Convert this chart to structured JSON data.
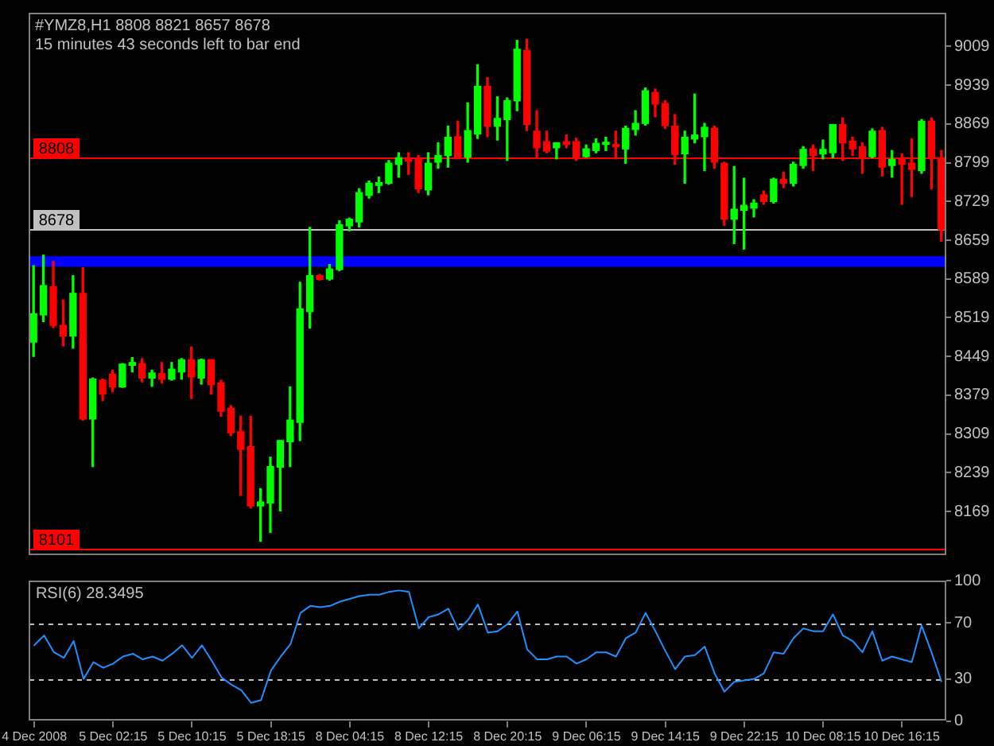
{
  "chart_data": [
    {
      "type": "candlestick",
      "title": "#YMZ8,H1 8808 8821 8657 8678",
      "subtitle": "15 minutes 43 seconds left to bar end",
      "categories": [
        null,
        null,
        null,
        null,
        null,
        null,
        null,
        null,
        null,
        null,
        null,
        null,
        null,
        null,
        null,
        null,
        null,
        null,
        null,
        null,
        null,
        null,
        null,
        null,
        null,
        null,
        null,
        null,
        null,
        null,
        null,
        null,
        null,
        null,
        null,
        null,
        null,
        null,
        null,
        null,
        null,
        null,
        null,
        null,
        null,
        null,
        null,
        null,
        null,
        null,
        null,
        null,
        null,
        null,
        null,
        null,
        null,
        null,
        null,
        null,
        null,
        null,
        null,
        null,
        null,
        null,
        null,
        null,
        null,
        null,
        null,
        null,
        null,
        null,
        null,
        null,
        null,
        null,
        null,
        null,
        null,
        null,
        null,
        null,
        null,
        null,
        null,
        null,
        null,
        null,
        null,
        null,
        null
      ],
      "ohlc": [
        [
          8475,
          8613,
          8449,
          8526
        ],
        [
          8524,
          8632,
          8512,
          8577
        ],
        [
          8575,
          8621,
          8501,
          8505
        ],
        [
          8505,
          8551,
          8468,
          8486
        ],
        [
          8486,
          8595,
          8464,
          8563
        ],
        [
          8563,
          8609,
          8334,
          8336
        ],
        [
          8336,
          8410,
          8250,
          8408
        ],
        [
          8406,
          8408,
          8369,
          8381
        ],
        [
          8417,
          8424,
          8385,
          8394
        ],
        [
          8394,
          8436,
          8393,
          8435
        ],
        [
          8433,
          8447,
          8421,
          8438
        ],
        [
          8436,
          8445,
          8403,
          8410
        ],
        [
          8410,
          8424,
          8395,
          8419
        ],
        [
          8418,
          8438,
          8401,
          8408
        ],
        [
          8408,
          8438,
          8406,
          8426
        ],
        [
          8421,
          8445,
          8408,
          8443
        ],
        [
          8443,
          8466,
          8373,
          8412
        ],
        [
          8410,
          8444,
          8399,
          8443
        ],
        [
          8443,
          8443,
          8381,
          8398
        ],
        [
          8401,
          8406,
          8341,
          8350
        ],
        [
          8355,
          8360,
          8306,
          8311
        ],
        [
          8313,
          8341,
          8198,
          8281
        ],
        [
          8286,
          8341,
          8175,
          8179
        ],
        [
          8179,
          8210,
          8115,
          8186
        ],
        [
          8184,
          8267,
          8131,
          8250
        ],
        [
          8249,
          8297,
          8170,
          8297
        ],
        [
          8295,
          8394,
          8250,
          8334
        ],
        [
          8330,
          8583,
          8297,
          8535
        ],
        [
          8530,
          8682,
          8500,
          8595
        ],
        [
          8595,
          8597,
          8587,
          8588
        ],
        [
          8589,
          8615,
          8587,
          8607
        ],
        [
          8606,
          8694,
          8604,
          8687
        ],
        [
          8685,
          8699,
          8676,
          8697
        ],
        [
          8692,
          8752,
          8683,
          8745
        ],
        [
          8740,
          8766,
          8735,
          8762
        ],
        [
          8758,
          8773,
          8745,
          8763
        ],
        [
          8762,
          8803,
          8760,
          8798
        ],
        [
          8796,
          8817,
          8773,
          8808
        ],
        [
          8805,
          8817,
          8778,
          8802
        ],
        [
          8805,
          8812,
          8745,
          8752
        ],
        [
          8750,
          8817,
          8741,
          8798
        ],
        [
          8800,
          8835,
          8789,
          8812
        ],
        [
          8812,
          8865,
          8791,
          8845
        ],
        [
          8846,
          8874,
          8806,
          8809
        ],
        [
          8809,
          8907,
          8800,
          8857
        ],
        [
          8851,
          8976,
          8843,
          8937
        ],
        [
          8937,
          8953,
          8846,
          8865
        ],
        [
          8865,
          8918,
          8840,
          8879
        ],
        [
          8877,
          8916,
          8803,
          8911
        ],
        [
          8911,
          9020,
          8893,
          9004
        ],
        [
          9002,
          9022,
          8857,
          8868
        ],
        [
          8856,
          8893,
          8809,
          8826
        ],
        [
          8837,
          8856,
          8817,
          8820
        ],
        [
          8826,
          8835,
          8806,
          8835
        ],
        [
          8837,
          8849,
          8826,
          8832
        ],
        [
          8837,
          8843,
          8803,
          8808
        ],
        [
          8810,
          8831,
          8809,
          8824
        ],
        [
          8821,
          8842,
          8817,
          8834
        ],
        [
          8832,
          8845,
          8821,
          8836
        ],
        [
          8832,
          8856,
          8806,
          8828
        ],
        [
          8824,
          8865,
          8798,
          8861
        ],
        [
          8859,
          8893,
          8849,
          8870
        ],
        [
          8870,
          8934,
          8867,
          8929
        ],
        [
          8926,
          8932,
          8882,
          8905
        ],
        [
          8906,
          8911,
          8861,
          8866
        ],
        [
          8865,
          8886,
          8796,
          8814
        ],
        [
          8815,
          8856,
          8762,
          8845
        ],
        [
          8842,
          8923,
          8835,
          8849
        ],
        [
          8846,
          8870,
          8785,
          8863
        ],
        [
          8861,
          8865,
          8789,
          8800
        ],
        [
          8798,
          8800,
          8686,
          8697
        ],
        [
          8697,
          8792,
          8653,
          8715
        ],
        [
          8713,
          8771,
          8643,
          8722
        ],
        [
          8717,
          8732,
          8701,
          8726
        ],
        [
          8741,
          8748,
          8724,
          8729
        ],
        [
          8729,
          8771,
          8726,
          8769
        ],
        [
          8769,
          8782,
          8754,
          8762
        ],
        [
          8762,
          8800,
          8757,
          8796
        ],
        [
          8794,
          8828,
          8789,
          8823
        ],
        [
          8824,
          8831,
          8785,
          8812
        ],
        [
          8815,
          8840,
          8806,
          8823
        ],
        [
          8817,
          8868,
          8808,
          8868
        ],
        [
          8868,
          8880,
          8803,
          8835
        ],
        [
          8838,
          8845,
          8812,
          8824
        ],
        [
          8828,
          8835,
          8780,
          8808
        ],
        [
          8810,
          8860,
          8808,
          8856
        ],
        [
          8857,
          8863,
          8775,
          8791
        ],
        [
          8794,
          8821,
          8773,
          8805
        ],
        [
          8805,
          8815,
          8724,
          8796
        ],
        [
          8798,
          8842,
          8738,
          8787
        ],
        [
          8785,
          8877,
          8780,
          8874
        ],
        [
          8874,
          8880,
          8752,
          8808
        ],
        [
          8808,
          8821,
          8657,
          8678
        ]
      ],
      "colors": [
        "#00ff00",
        "#00ff00",
        "#ff0000",
        "#ff0000",
        "#00ff00",
        "#ff0000",
        "#00ff00",
        "#ff0000",
        "#ff0000",
        "#00ff00",
        "#00ff00",
        "#ff0000",
        "#00ff00",
        "#ff0000",
        "#00ff00",
        "#00ff00",
        "#ff0000",
        "#00ff00",
        "#ff0000",
        "#ff0000",
        "#ff0000",
        "#ff0000",
        "#ff0000",
        "#00ff00",
        "#00ff00",
        "#00ff00",
        "#00ff00",
        "#00ff00",
        "#00ff00",
        "#ff0000",
        "#00ff00",
        "#00ff00",
        "#00ff00",
        "#00ff00",
        "#00ff00",
        "#00ff00",
        "#00ff00",
        "#00ff00",
        "#ff0000",
        "#ff0000",
        "#00ff00",
        "#00ff00",
        "#00ff00",
        "#ff0000",
        "#00ff00",
        "#00ff00",
        "#ff0000",
        "#00ff00",
        "#00ff00",
        "#00ff00",
        "#ff0000",
        "#ff0000",
        "#ff0000",
        "#00ff00",
        "#ff0000",
        "#ff0000",
        "#00ff00",
        "#00ff00",
        "#00ff00",
        "#ff0000",
        "#00ff00",
        "#00ff00",
        "#00ff00",
        "#ff0000",
        "#ff0000",
        "#ff0000",
        "#00ff00",
        "#00ff00",
        "#00ff00",
        "#ff0000",
        "#ff0000",
        "#00ff00",
        "#00ff00",
        "#00ff00",
        "#ff0000",
        "#00ff00",
        "#ff0000",
        "#00ff00",
        "#00ff00",
        "#ff0000",
        "#00ff00",
        "#00ff00",
        "#ff0000",
        "#ff0000",
        "#ff0000",
        "#00ff00",
        "#ff0000",
        "#00ff00",
        "#ff0000",
        "#ff0000",
        "#00ff00",
        "#ff0000",
        "#ff0000"
      ],
      "ylim": [
        8090,
        9070
      ],
      "yticks": [
        9009,
        8939,
        8869,
        8799,
        8729,
        8659,
        8589,
        8519,
        8449,
        8379,
        8309,
        8239,
        8169
      ],
      "tick_labels": "y",
      "ref_lines": [
        {
          "axis": "y",
          "value": 8808,
          "label": "8808",
          "color": "#ff0000"
        },
        {
          "axis": "y",
          "value": 8678,
          "label": "8678",
          "color": "#c0c0c0"
        },
        {
          "axis": "y",
          "value": 8101,
          "label": "8101",
          "color": "#ff0000"
        }
      ],
      "bands": [
        {
          "axis": "y",
          "from": 8611,
          "to": 8630,
          "color": "#0000ff"
        }
      ]
    },
    {
      "type": "line",
      "title": "RSI(6) 28.3495",
      "categories": [
        "4 Dec 2008",
        null,
        null,
        null,
        null,
        null,
        null,
        null,
        "5 Dec 02:15",
        null,
        null,
        null,
        null,
        null,
        null,
        null,
        "5 Dec 10:15",
        null,
        null,
        null,
        null,
        null,
        null,
        null,
        "5 Dec 18:15",
        null,
        null,
        null,
        null,
        null,
        null,
        null,
        "8 Dec 04:15",
        null,
        null,
        null,
        null,
        null,
        null,
        null,
        "8 Dec 12:15",
        null,
        null,
        null,
        null,
        null,
        null,
        null,
        "8 Dec 20:15",
        null,
        null,
        null,
        null,
        null,
        null,
        null,
        "9 Dec 06:15",
        null,
        null,
        null,
        null,
        null,
        null,
        null,
        "9 Dec 14:15",
        null,
        null,
        null,
        null,
        null,
        null,
        null,
        "9 Dec 22:15",
        null,
        null,
        null,
        null,
        null,
        null,
        null,
        "10 Dec 08:15",
        null,
        null,
        null,
        null,
        null,
        null,
        null,
        "10 Dec 16:15",
        null,
        null,
        null,
        null
      ],
      "series": [
        {
          "color": "#1e90ff",
          "values": [
            54,
            61,
            49,
            45,
            57,
            30,
            42,
            38,
            41,
            46,
            48,
            44,
            46,
            43,
            48,
            54,
            45,
            54,
            43,
            31,
            26,
            22,
            13,
            15,
            36,
            46,
            55,
            77,
            82,
            81,
            82,
            85,
            87,
            89,
            90,
            90,
            92,
            93,
            92,
            66,
            74,
            76,
            80,
            65,
            72,
            83,
            63,
            64,
            69,
            78,
            51,
            44,
            44,
            46,
            46,
            41,
            44,
            49,
            49,
            46,
            59,
            63,
            77,
            64,
            50,
            37,
            46,
            47,
            53,
            34,
            21,
            28,
            29,
            30,
            34,
            49,
            48,
            59,
            66,
            64,
            64,
            76,
            61,
            57,
            49,
            64,
            43,
            46,
            44,
            42,
            68,
            49,
            28.3495
          ]
        }
      ],
      "marker": "none",
      "ylim": [
        0,
        100
      ],
      "yticks": [
        0,
        30,
        70,
        100
      ],
      "ref_lines": [
        {
          "axis": "y",
          "value": 30,
          "color": "#c0c0c0",
          "line_style": "dashed"
        },
        {
          "axis": "y",
          "value": 70,
          "color": "#c0c0c0",
          "line_style": "dashed"
        }
      ]
    }
  ]
}
